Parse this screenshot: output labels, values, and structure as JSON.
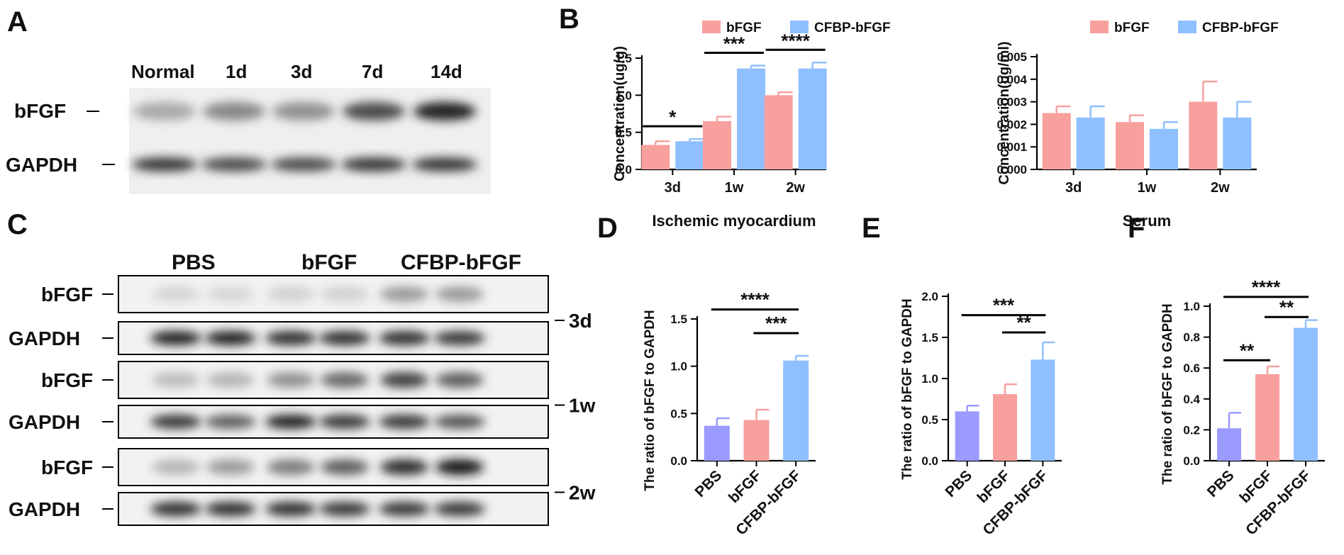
{
  "panels": {
    "A": {
      "letter": "A",
      "lanes": [
        "Normal",
        "1d",
        "3d",
        "7d",
        "14d"
      ],
      "rows": [
        "bFGF",
        "GAPDH"
      ],
      "band_intensity": {
        "bFGF": [
          0.28,
          0.45,
          0.4,
          0.75,
          0.95
        ],
        "GAPDH": [
          0.85,
          0.75,
          0.75,
          0.85,
          0.85
        ]
      }
    },
    "B": {
      "letter": "B"
    },
    "C": {
      "letter": "C",
      "groups": [
        "PBS",
        "bFGF",
        "CFBP-bFGF"
      ],
      "rows": [
        "bFGF",
        "GAPDH"
      ],
      "timepoints": [
        "3d",
        "1w",
        "2w"
      ],
      "band_intensity": {
        "3d": {
          "bFGF": [
            0.06,
            0.05,
            0.08,
            0.08,
            0.35,
            0.35
          ],
          "GAPDH": [
            0.95,
            0.95,
            0.9,
            0.9,
            0.9,
            0.85
          ]
        },
        "1w": {
          "bFGF": [
            0.18,
            0.22,
            0.4,
            0.6,
            0.8,
            0.65
          ],
          "GAPDH": [
            0.85,
            0.65,
            0.95,
            0.85,
            0.85,
            0.7
          ]
        },
        "2w": {
          "bFGF": [
            0.22,
            0.35,
            0.5,
            0.65,
            0.9,
            1.0
          ],
          "GAPDH": [
            0.9,
            0.9,
            0.9,
            0.85,
            0.85,
            0.85
          ]
        }
      }
    },
    "D": {
      "letter": "D"
    },
    "E": {
      "letter": "E"
    },
    "F": {
      "letter": "F"
    }
  },
  "colors": {
    "pbs": "#9a9aff",
    "bfgf": "#f7a09e",
    "cfbp": "#8fbfff"
  },
  "chart_data": [
    {
      "id": "B1",
      "type": "bar",
      "categories": [
        "3d",
        "1w",
        "2w"
      ],
      "series": [
        {
          "name": "bFGF",
          "color": "#f7a09e",
          "values": [
            0.33,
            0.65,
            1.0
          ],
          "errors": [
            0.05,
            0.06,
            0.04
          ]
        },
        {
          "name": "CFBP-bFGF",
          "color": "#8fbfff",
          "values": [
            0.38,
            1.36,
            1.36
          ],
          "errors": [
            0.03,
            0.04,
            0.08
          ]
        }
      ],
      "ylabel": "Concentration(ug/g)",
      "xlabel": "Ischemic myocardium",
      "ylim": [
        0,
        1.5
      ],
      "yticks": [
        "0.0",
        "0.5",
        "1.0",
        "1.5"
      ],
      "significance": [
        {
          "from": [
            0,
            0
          ],
          "to": [
            0,
            1
          ],
          "label": "*"
        },
        {
          "from": [
            1,
            0
          ],
          "to": [
            1,
            1
          ],
          "label": "***"
        },
        {
          "from": [
            2,
            0
          ],
          "to": [
            2,
            1
          ],
          "label": "****"
        }
      ],
      "legend": "top"
    },
    {
      "id": "B2",
      "type": "bar",
      "categories": [
        "3d",
        "1w",
        "2w"
      ],
      "series": [
        {
          "name": "bFGF",
          "color": "#f7a09e",
          "values": [
            0.0025,
            0.0021,
            0.003
          ],
          "errors": [
            0.0003,
            0.0003,
            0.0009
          ]
        },
        {
          "name": "CFBP-bFGF",
          "color": "#8fbfff",
          "values": [
            0.0023,
            0.0018,
            0.0023
          ],
          "errors": [
            0.0005,
            0.0003,
            0.0007
          ]
        }
      ],
      "ylabel": "Concentration(ug/ml)",
      "xlabel": "Serum",
      "ylim": [
        0,
        0.005
      ],
      "yticks": [
        "0.000",
        "0.001",
        "0.002",
        "0.003",
        "0.004",
        "0.005"
      ],
      "significance": [],
      "legend": "top"
    },
    {
      "id": "D",
      "type": "bar",
      "categories": [
        "PBS",
        "bFGF",
        "CFBP-bFGF"
      ],
      "values": [
        0.37,
        0.43,
        1.06
      ],
      "errors": [
        0.08,
        0.11,
        0.05
      ],
      "colors": [
        "#9a9aff",
        "#f7a09e",
        "#8fbfff"
      ],
      "ylabel": "The ratio of bFGF to GAPDH",
      "ylim": [
        0,
        1.5
      ],
      "yticks": [
        "0.0",
        "0.5",
        "1.0",
        "1.5"
      ],
      "significance": [
        {
          "from": 0,
          "to": 2,
          "label": "****",
          "level": 1.6
        },
        {
          "from": 1,
          "to": 2,
          "label": "***",
          "level": 1.35
        }
      ]
    },
    {
      "id": "E",
      "type": "bar",
      "categories": [
        "PBS",
        "bFGF",
        "CFBP-bFGF"
      ],
      "values": [
        0.6,
        0.81,
        1.23
      ],
      "errors": [
        0.07,
        0.12,
        0.21
      ],
      "colors": [
        "#9a9aff",
        "#f7a09e",
        "#8fbfff"
      ],
      "ylabel": "The ratio of bFGF to GAPDH",
      "ylim": [
        0,
        2.0
      ],
      "yticks": [
        "0.0",
        "0.5",
        "1.0",
        "1.5",
        "2.0"
      ],
      "significance": [
        {
          "from": 0,
          "to": 2,
          "label": "***",
          "level": 1.77
        },
        {
          "from": 1,
          "to": 2,
          "label": "**",
          "level": 1.56
        }
      ]
    },
    {
      "id": "F",
      "type": "bar",
      "categories": [
        "PBS",
        "bFGF",
        "CFBP-bFGF"
      ],
      "values": [
        0.21,
        0.56,
        0.86
      ],
      "errors": [
        0.1,
        0.05,
        0.05
      ],
      "colors": [
        "#9a9aff",
        "#f7a09e",
        "#8fbfff"
      ],
      "ylabel": "The ratio of bFGF to GAPDH",
      "ylim": [
        0,
        1.0
      ],
      "yticks": [
        "0.0",
        "0.2",
        "0.4",
        "0.6",
        "0.8",
        "1.0"
      ],
      "significance": [
        {
          "from": 0,
          "to": 1,
          "label": "**",
          "level": 0.65
        },
        {
          "from": 0,
          "to": 2,
          "label": "****",
          "level": 1.06
        },
        {
          "from": 1,
          "to": 2,
          "label": "**",
          "level": 0.93
        }
      ]
    }
  ]
}
